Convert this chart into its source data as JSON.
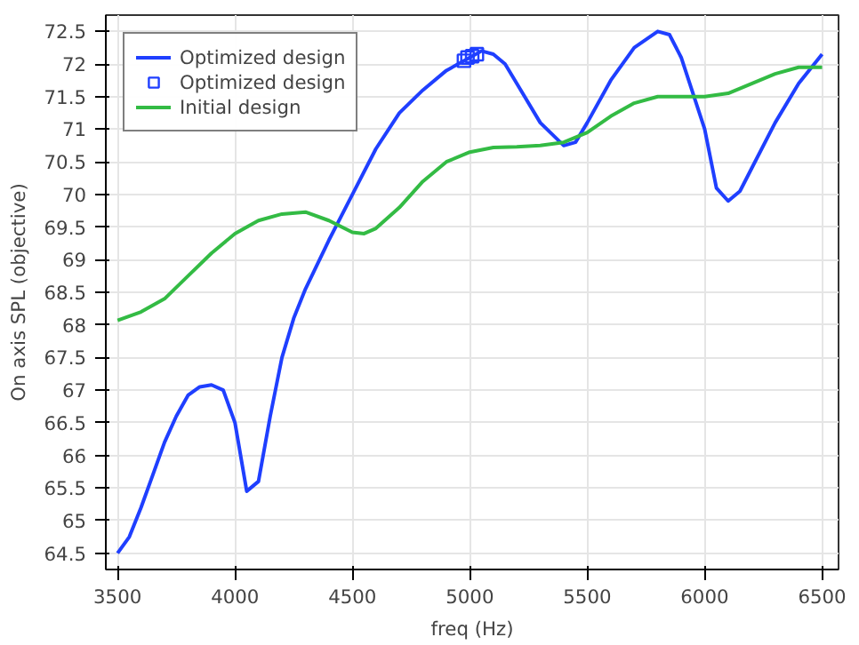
{
  "chart_data": {
    "type": "line",
    "xlabel": "freq (Hz)",
    "ylabel": "On axis SPL (objective)",
    "xlim": [
      3450,
      6570
    ],
    "ylim": [
      64.25,
      72.75
    ],
    "xticks": [
      3500,
      4000,
      4500,
      5000,
      5500,
      6000,
      6500
    ],
    "yticks": [
      64.5,
      65,
      65.5,
      66,
      66.5,
      67,
      67.5,
      68,
      68.5,
      69,
      69.5,
      70,
      70.5,
      71,
      71.5,
      72,
      72.5
    ],
    "grid": true,
    "legend": "top left",
    "line_style": "solid",
    "series": [
      {
        "name": "Optimized design",
        "color": "#1f3fff",
        "x": [
          3500,
          3550,
          3600,
          3650,
          3700,
          3750,
          3800,
          3850,
          3900,
          3950,
          4000,
          4050,
          4100,
          4150,
          4200,
          4250,
          4300,
          4400,
          4500,
          4600,
          4700,
          4800,
          4900,
          5000,
          5050,
          5100,
          5150,
          5200,
          5300,
          5400,
          5450,
          5500,
          5600,
          5700,
          5800,
          5850,
          5900,
          6000,
          6050,
          6100,
          6150,
          6200,
          6300,
          6400,
          6500
        ],
        "values": [
          64.5,
          64.75,
          65.2,
          65.7,
          66.2,
          66.6,
          66.92,
          67.05,
          67.08,
          67.0,
          66.5,
          65.45,
          65.6,
          66.6,
          67.5,
          68.1,
          68.55,
          69.3,
          70.0,
          70.7,
          71.25,
          71.6,
          71.9,
          72.1,
          72.2,
          72.15,
          72.0,
          71.7,
          71.1,
          70.75,
          70.8,
          71.1,
          71.75,
          72.25,
          72.5,
          72.45,
          72.1,
          71.0,
          70.1,
          69.9,
          70.05,
          70.4,
          71.1,
          71.7,
          72.15
        ]
      },
      {
        "name": "Optimized design",
        "color": "#1f3fff",
        "type": "scatter",
        "marker": "square",
        "x": [
          4975,
          4990,
          5010,
          5030
        ],
        "values": [
          72.05,
          72.1,
          72.12,
          72.15
        ]
      },
      {
        "name": "Initial design",
        "color": "#33bb44",
        "x": [
          3500,
          3600,
          3700,
          3800,
          3900,
          4000,
          4100,
          4200,
          4300,
          4400,
          4500,
          4550,
          4600,
          4700,
          4800,
          4900,
          5000,
          5100,
          5200,
          5300,
          5400,
          5500,
          5600,
          5700,
          5800,
          5900,
          6000,
          6100,
          6200,
          6300,
          6400,
          6500
        ],
        "values": [
          68.07,
          68.2,
          68.4,
          68.75,
          69.1,
          69.4,
          69.6,
          69.7,
          69.73,
          69.6,
          69.42,
          69.4,
          69.48,
          69.8,
          70.2,
          70.5,
          70.65,
          70.72,
          70.73,
          70.75,
          70.8,
          70.95,
          71.2,
          71.4,
          71.5,
          71.5,
          71.5,
          71.55,
          71.7,
          71.85,
          71.95,
          71.95
        ]
      }
    ]
  }
}
